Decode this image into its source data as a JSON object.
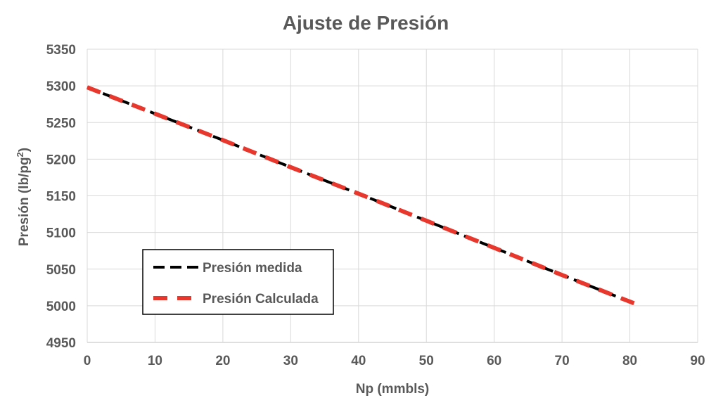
{
  "chart_data": {
    "type": "line",
    "title": "Ajuste de Presión",
    "xlabel": "Np (mmbls)",
    "ylabel_main": "Presión (lb/pg",
    "ylabel_sup": "2",
    "ylabel_end": ")",
    "xlim": [
      0,
      90
    ],
    "ylim": [
      4950,
      5350
    ],
    "xticks": [
      0,
      10,
      20,
      30,
      40,
      50,
      60,
      70,
      80,
      90
    ],
    "yticks": [
      4950,
      5000,
      5050,
      5100,
      5150,
      5200,
      5250,
      5300,
      5350
    ],
    "grid": true,
    "legend_position": "lower-left",
    "series": [
      {
        "name": "Presión medida",
        "color": "#000000",
        "x": [
          0,
          10,
          20,
          30,
          40,
          50,
          60,
          70,
          81
        ],
        "y": [
          5298,
          5262,
          5226,
          5189,
          5153,
          5116,
          5079,
          5042,
          5002
        ]
      },
      {
        "name": "Presión Calculada",
        "color": "#e8372c",
        "x": [
          0,
          10,
          20,
          30,
          40,
          50,
          60,
          70,
          81
        ],
        "y": [
          5298,
          5262,
          5226,
          5189,
          5153,
          5116,
          5079,
          5042,
          5002
        ]
      }
    ]
  }
}
